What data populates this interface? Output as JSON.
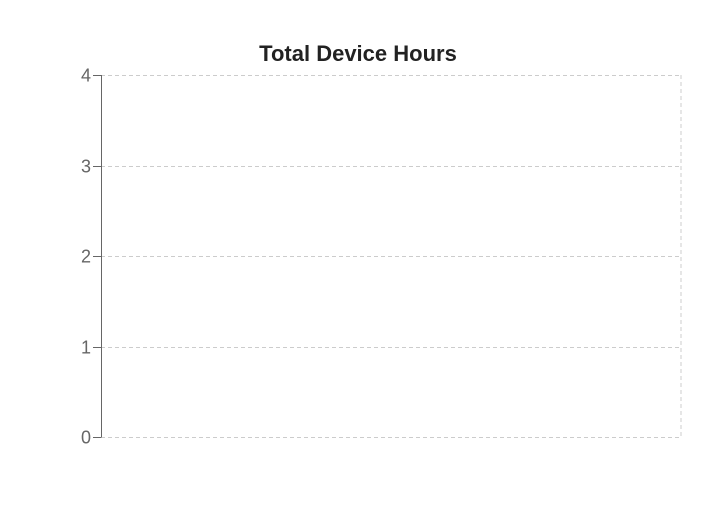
{
  "chart_data": {
    "type": "bar",
    "title": "Total Device Hours",
    "categories": [],
    "series": [],
    "ylim": [
      0,
      4
    ],
    "yticks": [
      "0",
      "1",
      "2",
      "3",
      "4"
    ],
    "grid": true,
    "grid_style": "dashed",
    "grid_color": "#cccccc",
    "axis_color": "#666666",
    "tick_label_color": "#666666",
    "title_color": "#222222"
  }
}
